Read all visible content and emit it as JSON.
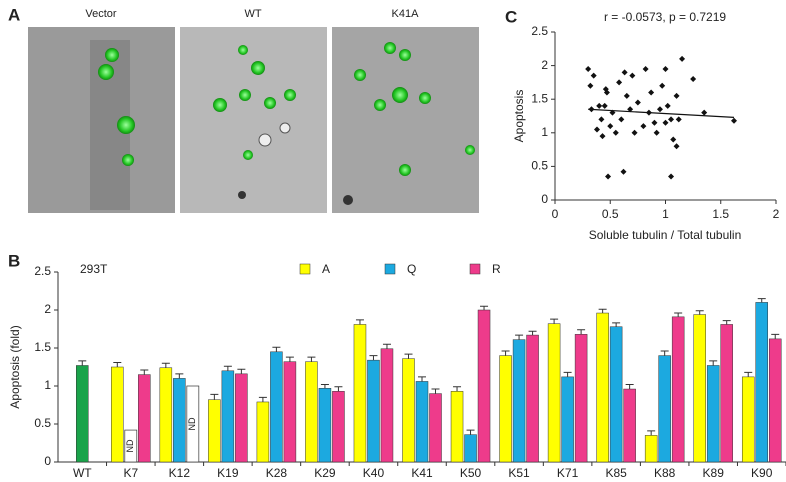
{
  "figure": {
    "panel_labels": [
      "A",
      "B",
      "C"
    ],
    "image_labels": [
      "Vector",
      "WT",
      "K41A"
    ]
  },
  "chart_data": [
    {
      "type": "scatter",
      "title": "r = -0.0573, p = 0.7219",
      "xlabel": "Soluble tubulin / Total tubulin",
      "ylabel": "Apoptosis",
      "color": "#111111",
      "x": [
        0.3,
        0.32,
        0.33,
        0.35,
        0.38,
        0.4,
        0.42,
        0.43,
        0.45,
        0.46,
        0.47,
        0.48,
        0.5,
        0.52,
        0.55,
        0.58,
        0.6,
        0.62,
        0.63,
        0.65,
        0.68,
        0.7,
        0.72,
        0.75,
        0.8,
        0.82,
        0.85,
        0.87,
        0.9,
        0.92,
        0.95,
        0.97,
        1.0,
        1.0,
        1.02,
        1.05,
        1.05,
        1.07,
        1.1,
        1.1,
        1.12,
        1.15,
        1.25,
        1.35,
        1.62
      ],
      "values": [
        1.95,
        1.7,
        1.35,
        1.85,
        1.05,
        1.4,
        1.2,
        0.95,
        1.4,
        1.65,
        1.6,
        0.35,
        1.1,
        1.3,
        1.0,
        1.75,
        1.2,
        0.42,
        1.9,
        1.55,
        1.35,
        1.85,
        1.0,
        1.45,
        1.1,
        1.95,
        1.3,
        1.6,
        1.15,
        1.0,
        1.35,
        1.7,
        1.95,
        1.15,
        1.4,
        0.35,
        1.2,
        0.9,
        0.8,
        1.55,
        1.2,
        2.1,
        1.8,
        1.3,
        1.18
      ],
      "trendline": {
        "x": [
          0.3,
          1.62
        ],
        "y": [
          1.35,
          1.23
        ]
      },
      "xlim": [
        0,
        2
      ],
      "xticks": [
        0,
        0.5,
        1,
        1.5,
        2
      ],
      "ylim": [
        0,
        2.5
      ],
      "yticks": [
        0,
        0.5,
        1,
        1.5,
        2,
        2.5
      ]
    },
    {
      "type": "bar",
      "annotation": "293T",
      "ylabel": "Apoptosis (fold)",
      "categories": [
        "WT",
        "K7",
        "K12",
        "K19",
        "K28",
        "K29",
        "K40",
        "K41",
        "K50",
        "K51",
        "K71",
        "K85",
        "K88",
        "K89",
        "K90"
      ],
      "control": {
        "value": 1.27,
        "error": 0.06,
        "color": "#1aa34a"
      },
      "series": [
        {
          "name": "A",
          "color": "#ffff00",
          "values": [
            null,
            1.25,
            1.24,
            0.82,
            0.79,
            1.32,
            1.81,
            1.36,
            0.93,
            1.4,
            1.82,
            1.96,
            0.35,
            1.94,
            1.12
          ],
          "errors": [
            null,
            0.06,
            0.06,
            0.07,
            0.06,
            0.06,
            0.06,
            0.06,
            0.06,
            0.06,
            0.06,
            0.05,
            0.06,
            0.05,
            0.06
          ]
        },
        {
          "name": "Q",
          "color": "#1ca9e0",
          "values": [
            null,
            null,
            1.1,
            1.2,
            1.45,
            0.97,
            1.34,
            1.06,
            0.36,
            1.61,
            1.12,
            1.78,
            1.4,
            1.27,
            2.1
          ],
          "errors": [
            null,
            null,
            0.06,
            0.06,
            0.06,
            0.05,
            0.06,
            0.06,
            0.06,
            0.06,
            0.06,
            0.05,
            0.06,
            0.06,
            0.05
          ]
        },
        {
          "name": "R",
          "color": "#ee3b8b",
          "values": [
            null,
            1.15,
            null,
            1.16,
            1.32,
            0.93,
            1.49,
            0.9,
            2.0,
            1.67,
            1.68,
            0.96,
            1.91,
            1.81,
            1.62
          ],
          "errors": [
            null,
            0.06,
            null,
            0.06,
            0.06,
            0.06,
            0.06,
            0.06,
            0.05,
            0.05,
            0.06,
            0.06,
            0.05,
            0.05,
            0.06
          ]
        }
      ],
      "nd_bars": [
        {
          "category": "K7",
          "series": "Q",
          "value": 0.42,
          "label": "ND"
        },
        {
          "category": "K12",
          "series": "R",
          "value": 1.0,
          "label": "ND"
        }
      ],
      "ylim": [
        0,
        2.5
      ],
      "yticks": [
        0,
        0.5,
        1,
        1.5,
        2,
        2.5
      ]
    }
  ]
}
